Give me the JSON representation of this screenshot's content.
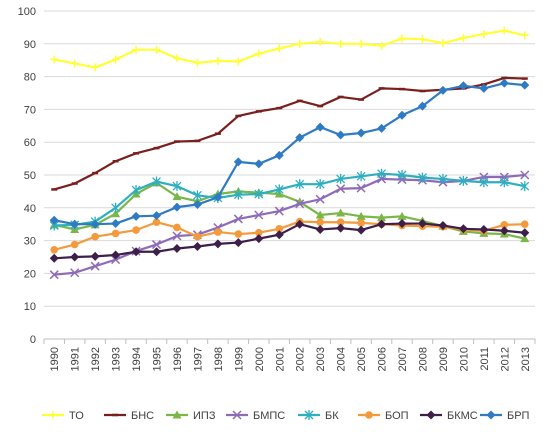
{
  "chart_data": {
    "type": "line",
    "title": "",
    "xlabel": "",
    "ylabel": "",
    "ylim": [
      0,
      100
    ],
    "y_ticks": [
      0,
      10,
      20,
      30,
      40,
      50,
      60,
      70,
      80,
      90,
      100
    ],
    "grid": "horizontal",
    "legend_position": "bottom",
    "categories": [
      "1990",
      "1991",
      "1992",
      "1993",
      "1994",
      "1995",
      "1996",
      "1997",
      "1998",
      "1999",
      "2000",
      "2001",
      "2002",
      "2003",
      "2004",
      "2005",
      "2006",
      "2007",
      "2008",
      "2009",
      "2010",
      "2011",
      "2012",
      "2013"
    ],
    "series": [
      {
        "name": "ТО",
        "color": "#FFFF33",
        "marker": "plus",
        "values": [
          85.2,
          84.0,
          82.8,
          85.2,
          88.2,
          88.2,
          85.6,
          84.2,
          84.8,
          84.6,
          87.0,
          88.6,
          90.0,
          90.6,
          90.0,
          90.0,
          89.4,
          91.6,
          91.4,
          90.2,
          91.8,
          93.0,
          94.0,
          92.6
        ]
      },
      {
        "name": "БНС",
        "color": "#7B1E1E",
        "marker": "dash",
        "values": [
          45.6,
          47.4,
          50.6,
          54.2,
          56.6,
          58.2,
          60.2,
          60.4,
          62.6,
          68.0,
          69.4,
          70.4,
          72.6,
          71.0,
          73.8,
          73.0,
          76.4,
          76.2,
          75.6,
          76.0,
          76.4,
          77.6,
          79.6,
          79.4
        ]
      },
      {
        "name": "ИПЗ",
        "color": "#7AB648",
        "marker": "triangle",
        "values": [
          34.8,
          33.4,
          34.8,
          38.2,
          44.2,
          47.6,
          43.4,
          42.0,
          44.2,
          45.0,
          44.6,
          44.2,
          41.8,
          37.8,
          38.4,
          37.4,
          37.0,
          37.4,
          36.0,
          34.4,
          32.8,
          32.2,
          32.0,
          30.6
        ]
      },
      {
        "name": "БМПС",
        "color": "#8E6BB8",
        "marker": "x",
        "values": [
          19.6,
          20.2,
          22.2,
          24.2,
          26.8,
          28.8,
          31.4,
          31.8,
          34.0,
          36.6,
          37.8,
          39.0,
          41.2,
          42.6,
          45.8,
          46.0,
          48.8,
          48.6,
          48.4,
          47.8,
          48.2,
          49.4,
          49.4,
          50.0
        ]
      },
      {
        "name": "БК",
        "color": "#2EAFC0",
        "marker": "star",
        "values": [
          34.6,
          34.8,
          35.8,
          40.0,
          45.4,
          48.0,
          46.6,
          43.8,
          43.0,
          44.0,
          44.2,
          45.6,
          47.2,
          47.2,
          48.8,
          49.6,
          50.4,
          50.0,
          49.2,
          48.8,
          48.2,
          47.8,
          47.8,
          46.6
        ]
      },
      {
        "name": "БОП",
        "color": "#F39A3C",
        "marker": "circle",
        "values": [
          27.2,
          28.8,
          31.2,
          32.2,
          33.2,
          35.6,
          34.0,
          31.2,
          32.6,
          32.0,
          32.4,
          33.6,
          35.8,
          35.6,
          35.6,
          35.4,
          35.0,
          34.6,
          34.4,
          34.2,
          33.4,
          33.0,
          34.8,
          35.0
        ]
      },
      {
        "name": "БКМС",
        "color": "#3D1F4A",
        "marker": "diamond",
        "values": [
          24.6,
          25.0,
          25.2,
          25.6,
          26.6,
          26.6,
          27.6,
          28.2,
          29.0,
          29.4,
          30.6,
          31.8,
          35.0,
          33.4,
          33.8,
          33.2,
          35.0,
          35.2,
          35.2,
          34.6,
          33.6,
          33.4,
          33.0,
          32.4
        ]
      },
      {
        "name": "БРП",
        "color": "#2E7BC4",
        "marker": "diamond",
        "values": [
          36.2,
          35.0,
          35.0,
          35.2,
          37.4,
          37.6,
          40.2,
          41.0,
          43.2,
          54.0,
          53.4,
          56.0,
          61.4,
          64.6,
          62.2,
          62.8,
          64.2,
          68.2,
          71.0,
          75.8,
          77.2,
          76.4,
          78.0,
          77.4
        ]
      }
    ]
  }
}
